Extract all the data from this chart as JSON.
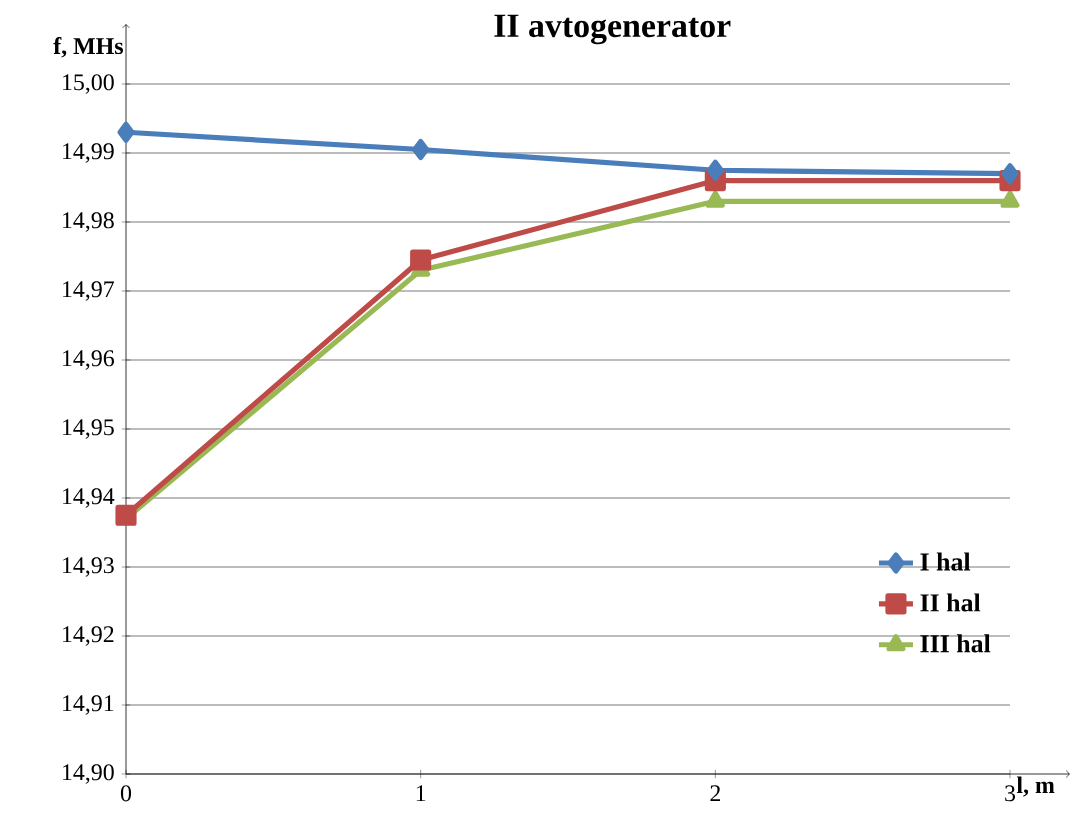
{
  "chart_data": {
    "type": "line",
    "title": "II avtogenerator",
    "xlabel": "l, m",
    "ylabel": "f, MHs",
    "x": [
      0,
      1,
      2,
      3
    ],
    "series": [
      {
        "name": "I hal",
        "color": "#4a7ebb",
        "marker": "diamond",
        "values": [
          14.993,
          14.9905,
          14.9875,
          14.987
        ]
      },
      {
        "name": "II hal",
        "color": "#be4b48",
        "marker": "square",
        "values": [
          14.9375,
          14.9745,
          14.986,
          14.986
        ]
      },
      {
        "name": "III hal",
        "color": "#98b954",
        "marker": "triangle",
        "values": [
          14.937,
          14.973,
          14.983,
          14.983
        ]
      }
    ],
    "xlim": [
      0,
      3
    ],
    "xticks": [
      0,
      1,
      2,
      3
    ],
    "ylim": [
      14.9,
      15.0
    ],
    "yticks": [
      {
        "value": 14.9,
        "label": "14,90"
      },
      {
        "value": 14.91,
        "label": "14,91"
      },
      {
        "value": 14.92,
        "label": "14,92"
      },
      {
        "value": 14.93,
        "label": "14,93"
      },
      {
        "value": 14.94,
        "label": "14,94"
      },
      {
        "value": 14.95,
        "label": "14,95"
      },
      {
        "value": 14.96,
        "label": "14,96"
      },
      {
        "value": 14.97,
        "label": "14,97"
      },
      {
        "value": 14.98,
        "label": "14,98"
      },
      {
        "value": 14.99,
        "label": "14,99"
      },
      {
        "value": 15.0,
        "label": "15,00"
      }
    ],
    "grid": "y",
    "legend": "right",
    "line_style": "solid"
  }
}
